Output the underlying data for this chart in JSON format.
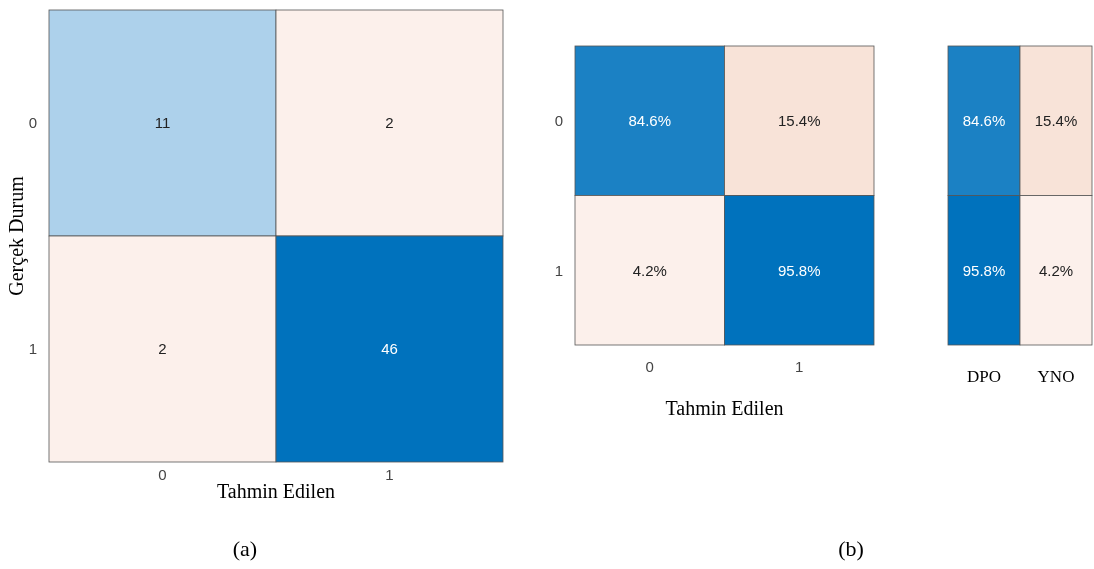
{
  "chart_data": [
    {
      "type": "heatmap",
      "categories": [
        "0",
        "1"
      ],
      "y_categories": [
        "0",
        "1"
      ],
      "cells": [
        [
          11,
          2
        ],
        [
          2,
          46
        ]
      ],
      "data_labels": true,
      "xlabel": "Tahmin Edilen",
      "ylabel": "Gerçek Durum",
      "annotations": [
        "(a)"
      ]
    },
    {
      "type": "heatmap",
      "categories": [
        "0",
        "1"
      ],
      "y_categories": [
        "0",
        "1"
      ],
      "cells": [
        [
          84.6,
          15.4
        ],
        [
          4.2,
          95.8
        ]
      ],
      "cell_labels": [
        [
          "84.6%",
          "15.4%"
        ],
        [
          "4.2%",
          "95.8%"
        ]
      ],
      "xlabel": "Tahmin Edilen",
      "annotations": [
        "(b)"
      ]
    },
    {
      "type": "heatmap",
      "categories": [
        "DPO",
        "YNO"
      ],
      "y_categories": [
        null,
        null
      ],
      "cells": [
        [
          84.6,
          15.4
        ],
        [
          95.8,
          4.2
        ]
      ],
      "cell_labels": [
        [
          "84.6%",
          "15.4%"
        ],
        [
          "95.8%",
          "4.2%"
        ]
      ],
      "tick_labels": "x"
    }
  ]
}
